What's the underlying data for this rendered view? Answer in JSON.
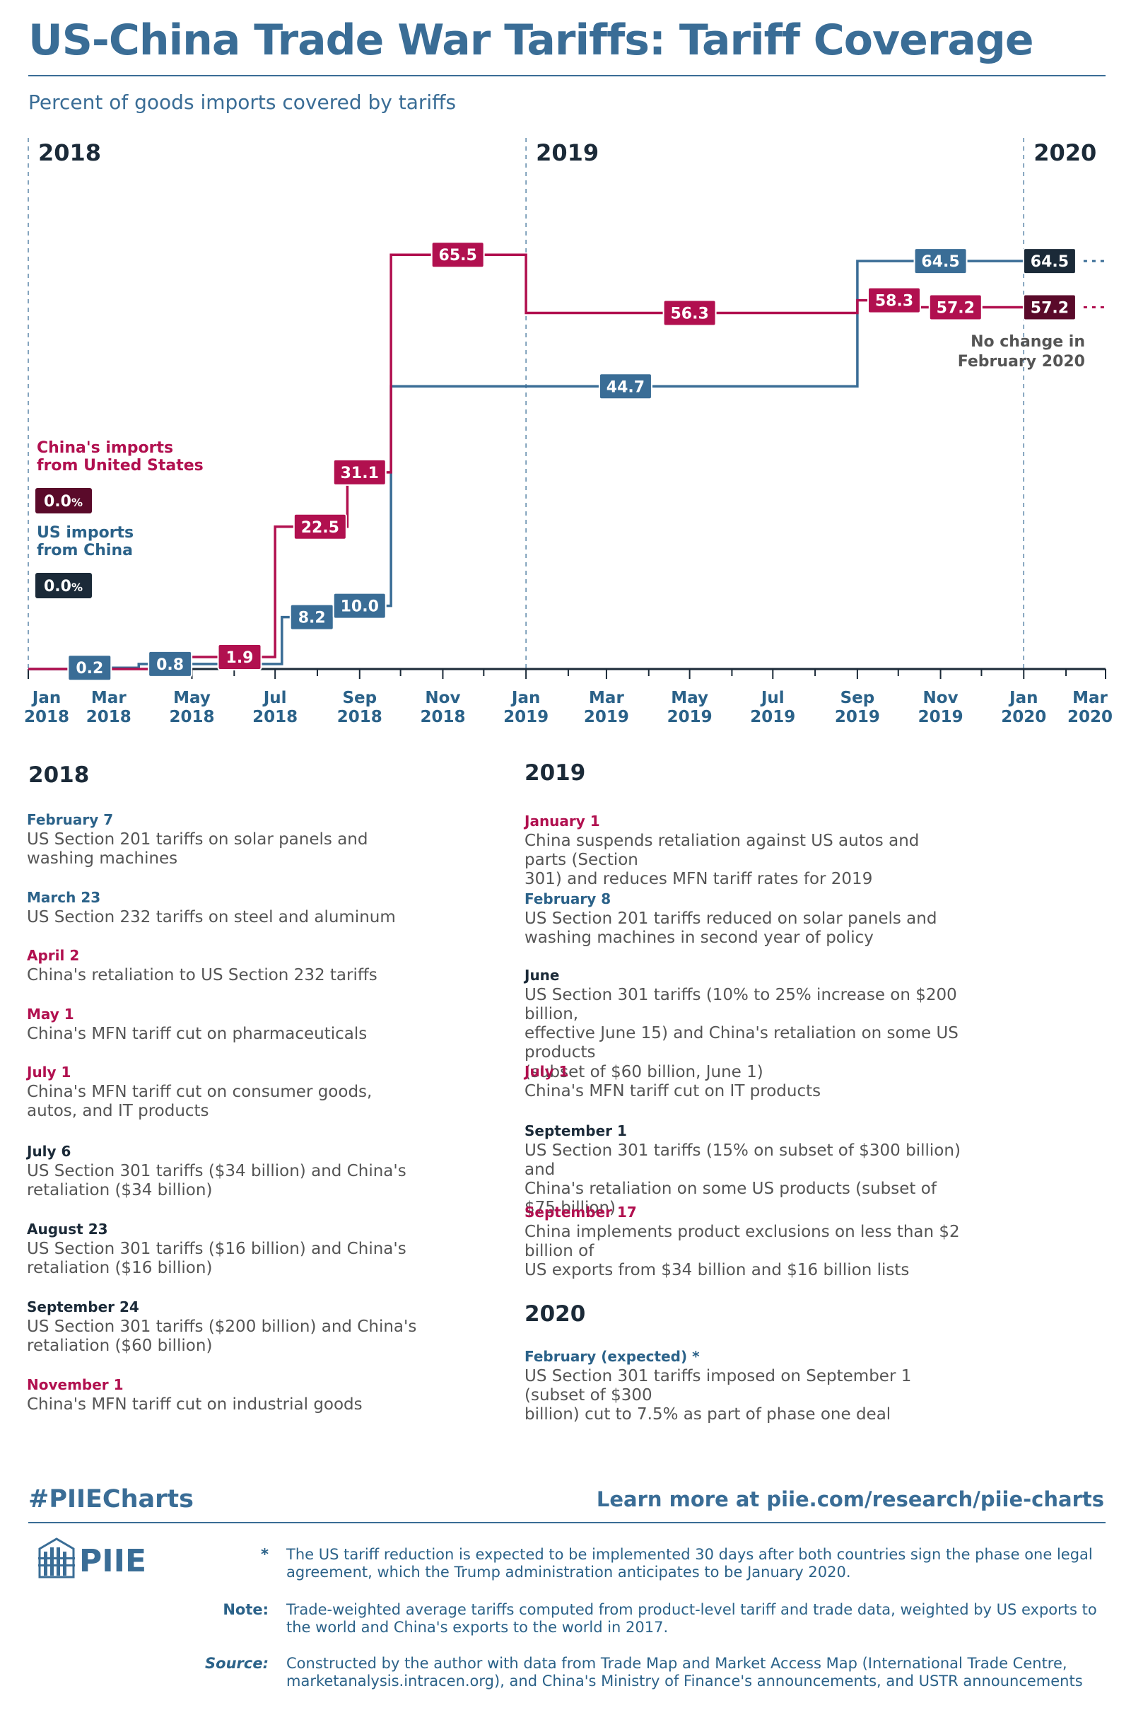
{
  "header": {
    "title": "US-China Trade War Tariffs: Tariff Coverage",
    "subtitle": "Percent of goods imports covered by tariffs"
  },
  "chart_data": {
    "type": "line",
    "step": true,
    "unit": "percent",
    "ylim": [
      0,
      70
    ],
    "xlim": [
      "2018-01-01",
      "2020-03-01"
    ],
    "grid": false,
    "year_labels": [
      "2018",
      "2019",
      "2020"
    ],
    "x_ticks": [
      {
        "month": "Jan",
        "year": "2018"
      },
      {
        "month": "Mar",
        "year": "2018"
      },
      {
        "month": "May",
        "year": "2018"
      },
      {
        "month": "Jul",
        "year": "2018"
      },
      {
        "month": "Sep",
        "year": "2018"
      },
      {
        "month": "Nov",
        "year": "2018"
      },
      {
        "month": "Jan",
        "year": "2019"
      },
      {
        "month": "Mar",
        "year": "2019"
      },
      {
        "month": "May",
        "year": "2019"
      },
      {
        "month": "Jul",
        "year": "2019"
      },
      {
        "month": "Sep",
        "year": "2019"
      },
      {
        "month": "Nov",
        "year": "2019"
      },
      {
        "month": "Jan",
        "year": "2020"
      },
      {
        "month": "Mar",
        "year": "2020"
      }
    ],
    "series": [
      {
        "name": "US imports from China",
        "color": "#3a6d96",
        "label_color": "#3a6d96",
        "points": [
          {
            "x": "2018-01-01",
            "y": 0.0
          },
          {
            "x": "2018-02-07",
            "y": 0.2
          },
          {
            "x": "2018-03-23",
            "y": 0.8
          },
          {
            "x": "2018-07-06",
            "y": 8.2
          },
          {
            "x": "2018-08-23",
            "y": 10.0
          },
          {
            "x": "2018-09-24",
            "y": 44.7
          },
          {
            "x": "2019-02-08",
            "y": 44.7
          },
          {
            "x": "2019-06-01",
            "y": 44.7
          },
          {
            "x": "2019-09-01",
            "y": 64.5
          },
          {
            "x": "2020-02-01",
            "y": 64.5
          }
        ],
        "labels": [
          {
            "x": "2018-02-15",
            "y": 0.2,
            "text": "0.2"
          },
          {
            "x": "2018-04-15",
            "y": 0.8,
            "text": "0.8"
          },
          {
            "x": "2018-07-28",
            "y": 8.2,
            "text": "8.2"
          },
          {
            "x": "2018-09-01",
            "y": 10.0,
            "text": "10.0"
          },
          {
            "x": "2019-03-15",
            "y": 44.7,
            "text": "44.7"
          },
          {
            "x": "2019-11-01",
            "y": 64.5,
            "text": "64.5"
          },
          {
            "x": "2020-01-20",
            "y": 64.5,
            "text": "64.5",
            "dark": true
          }
        ]
      },
      {
        "name": "China's imports from United States",
        "color": "#b1104f",
        "label_color": "#b1104f",
        "points": [
          {
            "x": "2018-01-01",
            "y": 0.0
          },
          {
            "x": "2018-04-02",
            "y": 1.9
          },
          {
            "x": "2018-05-01",
            "y": 1.9
          },
          {
            "x": "2018-07-01",
            "y": 22.5
          },
          {
            "x": "2018-08-23",
            "y": 31.1
          },
          {
            "x": "2018-09-24",
            "y": 65.5
          },
          {
            "x": "2019-01-01",
            "y": 56.3
          },
          {
            "x": "2019-09-01",
            "y": 58.3
          },
          {
            "x": "2019-09-17",
            "y": 57.2
          },
          {
            "x": "2020-02-01",
            "y": 57.2
          }
        ],
        "labels": [
          {
            "x": "2018-06-05",
            "y": 1.9,
            "text": "1.9"
          },
          {
            "x": "2018-08-03",
            "y": 22.5,
            "text": "22.5"
          },
          {
            "x": "2018-09-01",
            "y": 31.1,
            "text": "31.1"
          },
          {
            "x": "2018-11-12",
            "y": 65.5,
            "text": "65.5"
          },
          {
            "x": "2019-05-01",
            "y": 56.3,
            "text": "56.3"
          },
          {
            "x": "2019-09-28",
            "y": 58.3,
            "text": "58.3"
          },
          {
            "x": "2019-11-12",
            "y": 57.2,
            "text": "57.2"
          },
          {
            "x": "2020-01-20",
            "y": 57.2,
            "text": "57.2",
            "dark": true
          }
        ]
      }
    ],
    "legend": [
      {
        "text": [
          "China's imports",
          "from United States"
        ],
        "value": "0.0",
        "unit": "%",
        "color": "#b1104f",
        "box": "#5a0a2a"
      },
      {
        "text": [
          "US imports",
          "from China"
        ],
        "value": "0.0",
        "unit": "%",
        "color": "#2b6289",
        "box": "#1b2a38"
      }
    ],
    "annotation": [
      "No change in",
      "February 2020"
    ]
  },
  "events": {
    "heading_2018": "2018",
    "heading_2019": "2019",
    "heading_2020": "2020",
    "col_2018": [
      {
        "date": "February 7",
        "text": [
          "US Section 201 tariffs on solar panels and",
          "washing machines"
        ],
        "color": "blue"
      },
      {
        "date": "March 23",
        "text": [
          "US Section 232 tariffs on steel and aluminum"
        ],
        "color": "blue"
      },
      {
        "date": "April 2",
        "text": [
          "China's retaliation to US Section 232 tariffs"
        ],
        "color": "red"
      },
      {
        "date": "May 1",
        "text": [
          "China's MFN tariff cut on pharmaceuticals"
        ],
        "color": "red"
      },
      {
        "date": "July 1",
        "text": [
          "China's MFN tariff cut on consumer goods,",
          "autos, and IT products"
        ],
        "color": "red"
      },
      {
        "date": "July 6",
        "text": [
          "US Section 301 tariffs ($34 billion) and China's",
          "retaliation ($34 billion)"
        ],
        "color": "dark"
      },
      {
        "date": "August 23",
        "text": [
          "US Section 301 tariffs ($16 billion) and China's",
          "retaliation ($16 billion)"
        ],
        "color": "dark"
      },
      {
        "date": "September 24",
        "text": [
          "US Section 301 tariffs ($200 billion) and China's",
          "retaliation ($60 billion)"
        ],
        "color": "dark"
      },
      {
        "date": "November 1",
        "text": [
          "China's MFN tariff cut on industrial goods"
        ],
        "color": "red"
      }
    ],
    "col_2019": [
      {
        "date": "January 1",
        "text": [
          "China suspends retaliation against US autos and parts (Section",
          "301) and reduces MFN tariff rates for 2019"
        ],
        "color": "red"
      },
      {
        "date": "February 8",
        "text": [
          "US Section 201 tariffs reduced on solar panels and",
          "washing machines in second year of policy"
        ],
        "color": "blue"
      },
      {
        "date": "June",
        "text": [
          "US Section 301 tariffs (10% to 25% increase on $200 billion,",
          "effective June 15) and China's retaliation on some US products",
          "(subset of $60 billion, June 1)"
        ],
        "color": "dark"
      },
      {
        "date": "July 1",
        "text": [
          "China's MFN tariff cut on IT products"
        ],
        "color": "red"
      },
      {
        "date": "September 1",
        "text": [
          "US Section 301 tariffs (15% on subset of $300 billion) and",
          "China's retaliation on some US products (subset of $75 billion)"
        ],
        "color": "dark"
      },
      {
        "date": "September 17",
        "text": [
          "China implements product exclusions on less than $2 billion of",
          "US exports from $34 billion and $16 billion lists"
        ],
        "color": "red"
      }
    ],
    "col_2020": [
      {
        "date": "February (expected) *",
        "text": [
          "US Section 301 tariffs imposed on September 1 (subset of $300",
          "billion) cut to 7.5% as part of phase one deal"
        ],
        "color": "blue"
      }
    ]
  },
  "footer": {
    "hashtag": "#PIIECharts",
    "link": "Learn more at piie.com/research/piie-charts",
    "logo_text": "PIIE",
    "notes": [
      {
        "key": "*",
        "text": "The US tariff reduction is expected to be implemented 30 days after both countries sign the phase one legal agreement, which the Trump administration anticipates to be January 2020."
      },
      {
        "key": "Note:",
        "text": "Trade-weighted average tariffs computed from product-level tariff and trade data, weighted by US exports to the world and China's exports to the world in 2017."
      },
      {
        "key": "Source:",
        "text": "Constructed by the author with data from Trade Map and Market Access Map (International Trade Centre, marketanalysis.intracen.org), and China's Ministry of Finance's announcements, and USTR announcements"
      }
    ]
  }
}
